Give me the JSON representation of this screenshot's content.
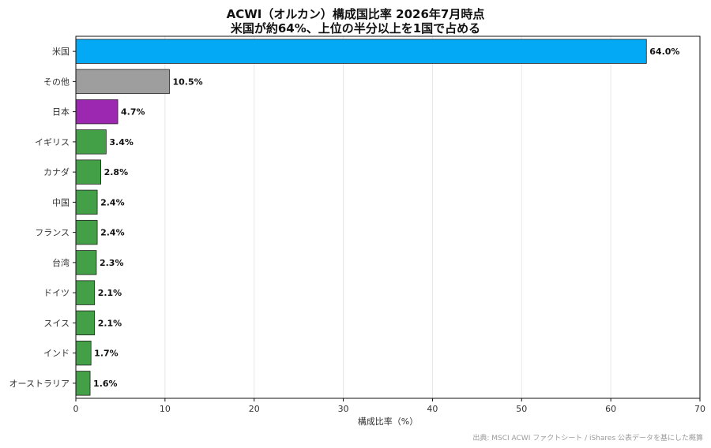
{
  "chart_data": {
    "type": "bar",
    "orientation": "horizontal",
    "title": "ACWI（オルカン）構成国比率 2026年7月時点",
    "subtitle": "米国が約64%、上位の半分以上を1国で占める",
    "xlabel": "構成比率（%）",
    "ylabel": "",
    "xlim": [
      0,
      70
    ],
    "xticks": [
      "0",
      "10",
      "20",
      "30",
      "40",
      "50",
      "60",
      "70"
    ],
    "grid": "vertical",
    "categories": [
      "米国",
      "その他",
      "日本",
      "イギリス",
      "カナダ",
      "中国",
      "フランス",
      "台湾",
      "ドイツ",
      "スイス",
      "インド",
      "オーストラリア"
    ],
    "values": [
      64.0,
      10.5,
      4.7,
      3.4,
      2.8,
      2.4,
      2.4,
      2.3,
      2.1,
      2.1,
      1.7,
      1.6
    ],
    "data_labels": [
      "64.0%",
      "10.5%",
      "4.7%",
      "3.4%",
      "2.8%",
      "2.4%",
      "2.4%",
      "2.3%",
      "2.1%",
      "2.1%",
      "1.7%",
      "1.6%"
    ],
    "colors": [
      "#03a9f4",
      "#9e9e9e",
      "#9c27b0",
      "#43a047",
      "#43a047",
      "#43a047",
      "#43a047",
      "#43a047",
      "#43a047",
      "#43a047",
      "#43a047",
      "#43a047"
    ]
  },
  "source_note": "出典: MSCI ACWI ファクトシート / iShares 公表データを基にした概算"
}
